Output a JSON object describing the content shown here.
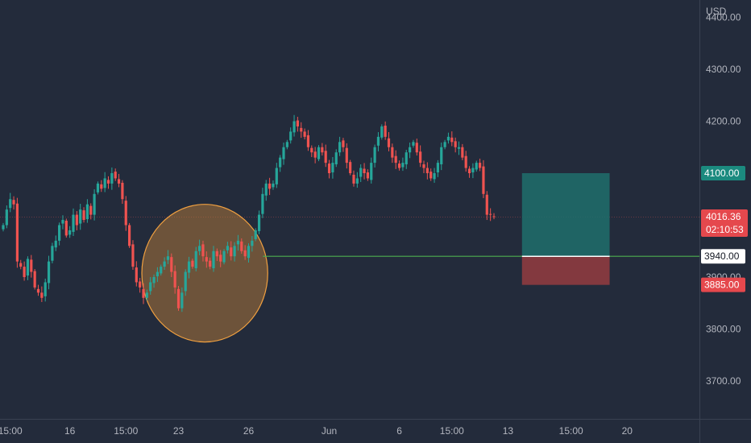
{
  "chart_data": {
    "type": "candlestick",
    "currency": "USD",
    "y_ticks": [
      3700,
      3800,
      3900,
      4000,
      4100,
      4200,
      4300,
      4400
    ],
    "y_tick_labels": [
      "3700.00",
      "3800.00",
      "3900.00",
      "4000.00",
      "4100.00",
      "4200.00",
      "4300.00",
      "4400.00"
    ],
    "x_labels": [
      {
        "label": "15:00",
        "idx": 2
      },
      {
        "label": "16",
        "idx": 19
      },
      {
        "label": "15:00",
        "idx": 35
      },
      {
        "label": "23",
        "idx": 50
      },
      {
        "label": "26",
        "idx": 70
      },
      {
        "label": "Jun",
        "idx": 93
      },
      {
        "label": "6",
        "idx": 113
      },
      {
        "label": "15:00",
        "idx": 128
      },
      {
        "label": "13",
        "idx": 144
      },
      {
        "label": "15:00",
        "idx": 162
      },
      {
        "label": "20",
        "idx": 178
      }
    ],
    "closes": [
      4000,
      4030,
      4050,
      4040,
      3930,
      3920,
      3900,
      3935,
      3910,
      3880,
      3870,
      3860,
      3890,
      3930,
      3960,
      3970,
      4000,
      4010,
      3980,
      3990,
      4020,
      4000,
      4030,
      4010,
      4040,
      4020,
      4060,
      4080,
      4070,
      4090,
      4080,
      4100,
      4090,
      4080,
      4050,
      4000,
      3960,
      3920,
      3890,
      3880,
      3860,
      3870,
      3890,
      3900,
      3910,
      3920,
      3930,
      3940,
      3910,
      3880,
      3840,
      3870,
      3910,
      3930,
      3920,
      3950,
      3960,
      3940,
      3930,
      3920,
      3950,
      3940,
      3930,
      3950,
      3960,
      3940,
      3960,
      3970,
      3950,
      3940,
      3960,
      3970,
      3990,
      4020,
      4060,
      4080,
      4070,
      4080,
      4110,
      4130,
      4150,
      4160,
      4180,
      4200,
      4190,
      4180,
      4170,
      4150,
      4140,
      4130,
      4150,
      4140,
      4120,
      4100,
      4120,
      4140,
      4160,
      4150,
      4120,
      4100,
      4080,
      4090,
      4110,
      4100,
      4090,
      4120,
      4150,
      4170,
      4190,
      4170,
      4150,
      4130,
      4120,
      4110,
      4120,
      4140,
      4150,
      4160,
      4140,
      4120,
      4110,
      4100,
      4090,
      4100,
      4120,
      4150,
      4160,
      4170,
      4160,
      4150,
      4150,
      4130,
      4110,
      4100,
      4110,
      4120,
      4110,
      4060,
      4020,
      4020,
      4016.36
    ],
    "current_price": "4016.36",
    "countdown": "02:10:53",
    "horizontal_line": {
      "value": 3940,
      "label": "3940.00"
    },
    "target": {
      "value": 4100,
      "label": "4100.00"
    },
    "stop": {
      "value": 3885,
      "label": "3885.00"
    },
    "position": {
      "entry": 3940,
      "target": 4100,
      "stop": 3885,
      "start_idx": 148,
      "end_idx": 173
    },
    "highlight_circle": {
      "start_idx": 40,
      "end_idx": 75,
      "center_price": 3906,
      "high_price": 4040,
      "low_price": 3775
    },
    "colors": {
      "up": "#26a69a",
      "down": "#ef5350",
      "line": "#4caf50",
      "target_zone": "#1f6f6c",
      "stop_zone": "#8e3b40",
      "circle": "#c8853a"
    }
  }
}
